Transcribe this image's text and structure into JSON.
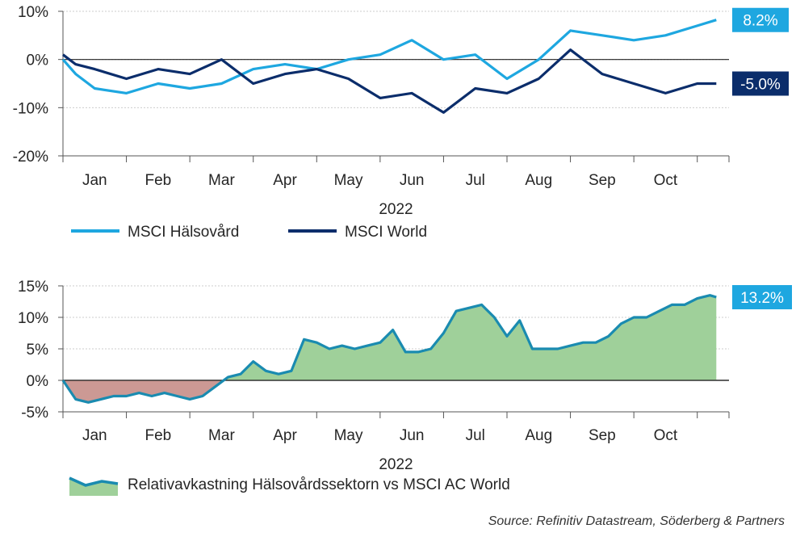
{
  "colors": {
    "healthcare": "#1ea7e0",
    "world": "#0b2d6b",
    "relative_line": "#1a8bb0",
    "area_positive": "#9fd09a",
    "area_negative": "#cc9994",
    "grid": "#cccccc",
    "axis": "#555555"
  },
  "source": "Source: Refinitiv Datastream, Söderberg & Partners",
  "chart_data": [
    {
      "type": "line",
      "title": "",
      "xlabel": "2022",
      "x_ticks": [
        "Jan",
        "Feb",
        "Mar",
        "Apr",
        "May",
        "Jun",
        "Jul",
        "Aug",
        "Sep",
        "Oct"
      ],
      "y_ticks": [
        "10%",
        "0%",
        "-10%",
        "-20%"
      ],
      "ylim": [
        -20,
        10
      ],
      "grid": "horizontal dotted",
      "legend_position": "bottom-left",
      "series": [
        {
          "name": "MSCI Hälsovård",
          "end_label": "8.2%",
          "x": [
            0,
            0.2,
            0.5,
            1,
            1.5,
            2,
            2.5,
            3,
            3.5,
            4,
            4.5,
            5,
            5.5,
            6,
            6.5,
            7,
            7.5,
            8,
            8.5,
            9,
            9.5,
            10,
            10.3
          ],
          "values": [
            0,
            -3,
            -6,
            -7,
            -5,
            -6,
            -5,
            -2,
            -1,
            -2,
            0,
            1,
            4,
            0,
            1,
            -4,
            0,
            6,
            5,
            4,
            5,
            7,
            8.2
          ]
        },
        {
          "name": "MSCI World",
          "end_label": "-5.0%",
          "x": [
            0,
            0.2,
            0.5,
            1,
            1.5,
            2,
            2.5,
            3,
            3.5,
            4,
            4.5,
            5,
            5.5,
            6,
            6.5,
            7,
            7.5,
            8,
            8.5,
            9,
            9.5,
            10,
            10.3
          ],
          "values": [
            1,
            -1,
            -2,
            -4,
            -2,
            -3,
            0,
            -5,
            -3,
            -2,
            -4,
            -8,
            -7,
            -11,
            -6,
            -7,
            -4,
            2,
            -3,
            -5,
            -7,
            -5,
            -5.0
          ]
        }
      ]
    },
    {
      "type": "area",
      "title": "",
      "xlabel": "2022",
      "x_ticks": [
        "Jan",
        "Feb",
        "Mar",
        "Apr",
        "May",
        "Jun",
        "Jul",
        "Aug",
        "Sep",
        "Oct"
      ],
      "y_ticks": [
        "15%",
        "10%",
        "5%",
        "0%",
        "-5%"
      ],
      "ylim": [
        -5,
        15
      ],
      "grid": "horizontal dotted",
      "legend_position": "bottom-left",
      "series": [
        {
          "name": "Relativavkastning Hälsovårdssektorn vs MSCI AC World",
          "end_label": "13.2%",
          "x": [
            0,
            0.2,
            0.4,
            0.6,
            0.8,
            1,
            1.2,
            1.4,
            1.6,
            1.8,
            2,
            2.2,
            2.4,
            2.6,
            2.8,
            3,
            3.2,
            3.4,
            3.6,
            3.8,
            4,
            4.2,
            4.4,
            4.6,
            4.8,
            5,
            5.2,
            5.4,
            5.6,
            5.8,
            6,
            6.2,
            6.4,
            6.6,
            6.8,
            7,
            7.2,
            7.4,
            7.6,
            7.8,
            8,
            8.2,
            8.4,
            8.6,
            8.8,
            9,
            9.2,
            9.4,
            9.6,
            9.8,
            10,
            10.2,
            10.3
          ],
          "values": [
            0,
            -3,
            -3.5,
            -3,
            -2.5,
            -2.5,
            -2,
            -2.5,
            -2,
            -2.5,
            -3,
            -2.5,
            -1,
            0.5,
            1,
            3,
            1.5,
            1,
            1.5,
            6.5,
            6,
            5,
            5.5,
            5,
            5.5,
            6,
            8,
            4.5,
            4.5,
            5,
            7.5,
            11,
            11.5,
            12,
            10,
            7,
            9.5,
            5,
            5,
            5,
            5.5,
            6,
            6,
            7,
            9,
            10,
            10,
            11,
            12,
            12,
            13,
            13.5,
            13.2
          ]
        }
      ]
    }
  ]
}
